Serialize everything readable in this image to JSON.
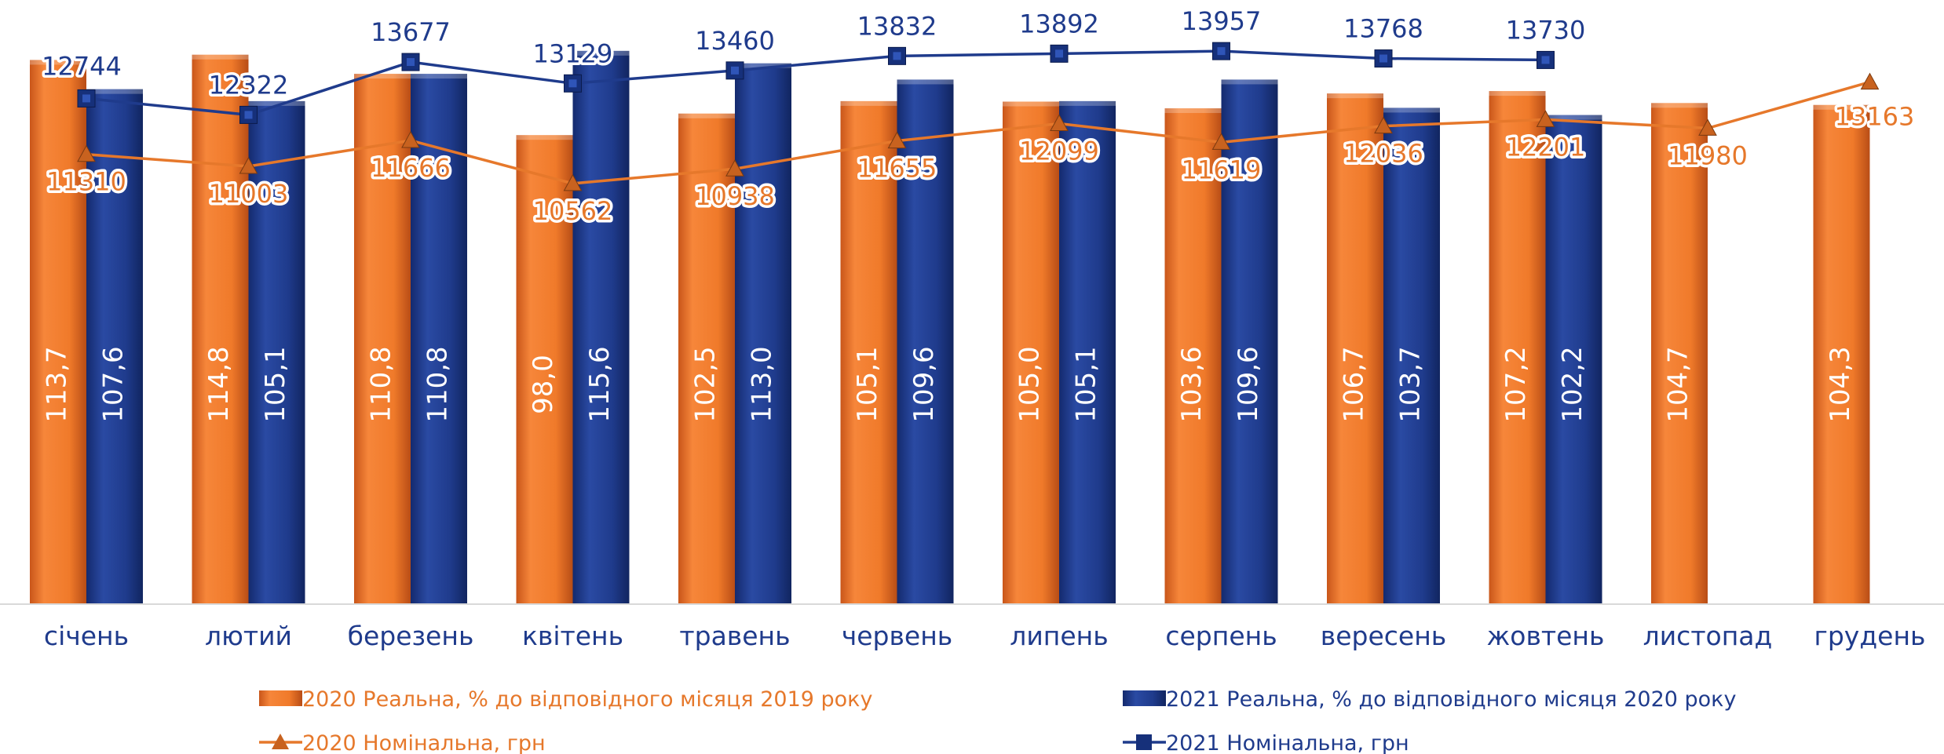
{
  "chart_data": {
    "type": "bar",
    "categories": [
      "січень",
      "лютий",
      "березень",
      "квітень",
      "травень",
      "червень",
      "липень",
      "серпень",
      "вересень",
      "жовтень",
      "листопад",
      "грудень"
    ],
    "series": [
      {
        "name": "2020 Реальна, % до відповідного місяця 2019 року",
        "kind": "bar",
        "color": "#f07a2a",
        "values": [
          113.7,
          114.8,
          110.8,
          98.0,
          102.5,
          105.1,
          105.0,
          103.6,
          106.7,
          107.2,
          104.7,
          104.3
        ],
        "labels": [
          "113,7",
          "114,8",
          "110,8",
          "98,0",
          "102,5",
          "105,1",
          "105,0",
          "103,6",
          "106,7",
          "107,2",
          "104,7",
          "104,3"
        ]
      },
      {
        "name": "2021 Реальна, % до відповідного місяця 2020 року",
        "kind": "bar",
        "color": "#1f3b8c",
        "values": [
          107.6,
          105.1,
          110.8,
          115.6,
          113.0,
          109.6,
          105.1,
          109.6,
          103.7,
          102.2,
          null,
          null
        ],
        "labels": [
          "107,6",
          "105,1",
          "110,8",
          "115,6",
          "113,0",
          "109,6",
          "105,1",
          "109,6",
          "103,7",
          "102,2",
          "",
          ""
        ]
      },
      {
        "name": "2020 Номінальна, грн",
        "kind": "line",
        "marker": "triangle",
        "color": "#e6782b",
        "values": [
          11310,
          11003,
          11666,
          10562,
          10938,
          11655,
          12099,
          11619,
          12036,
          12201,
          11980,
          13163
        ],
        "labels": [
          "11310",
          "11003",
          "11666",
          "10562",
          "10938",
          "11655",
          "12099",
          "11619",
          "12036",
          "12201",
          "11980",
          "13163"
        ]
      },
      {
        "name": "2021 Номінальна, грн",
        "kind": "line",
        "marker": "square",
        "color": "#1f3b8c",
        "values": [
          12744,
          12322,
          13677,
          13129,
          13460,
          13832,
          13892,
          13957,
          13768,
          13730,
          null,
          null
        ],
        "labels": [
          "12744",
          "12322",
          "13677",
          "13129",
          "13460",
          "13832",
          "13892",
          "13957",
          "13768",
          "13730",
          "",
          ""
        ]
      }
    ],
    "legend_position": "bottom",
    "grid": false
  },
  "legend": [
    {
      "label": "2020 Реальна, % до відповідного місяця 2019 року",
      "color": "#e6782b",
      "swatch": "bar"
    },
    {
      "label": "2021 Реальна, % до відповідного місяця 2020 року",
      "color": "#1f3b8c",
      "swatch": "bar"
    },
    {
      "label": "2020 Номінальна, грн",
      "color": "#e6782b",
      "swatch": "line-triangle"
    },
    {
      "label": "2021 Номінальна, грн",
      "color": "#1f3b8c",
      "swatch": "line-square"
    }
  ]
}
